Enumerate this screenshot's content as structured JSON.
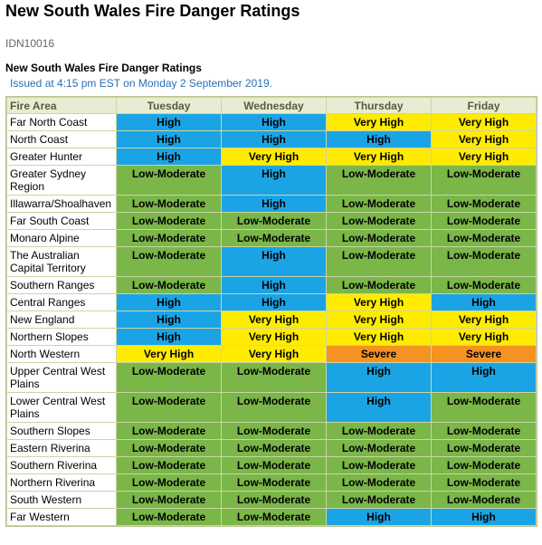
{
  "page": {
    "title": "New South Wales Fire Danger Ratings",
    "product_id": "IDN10016",
    "subtitle": "New South Wales Fire Danger Ratings",
    "issued": "Issued at 4:15 pm EST on Monday 2 September 2019."
  },
  "table": {
    "headers": [
      "Fire Area",
      "Tuesday",
      "Wednesday",
      "Thursday",
      "Friday"
    ],
    "rows": [
      {
        "area": "Far North Coast",
        "ratings": [
          "High",
          "High",
          "Very High",
          "Very High"
        ]
      },
      {
        "area": "North Coast",
        "ratings": [
          "High",
          "High",
          "High",
          "Very High"
        ]
      },
      {
        "area": "Greater Hunter",
        "ratings": [
          "High",
          "Very High",
          "Very High",
          "Very High"
        ]
      },
      {
        "area": "Greater Sydney Region",
        "ratings": [
          "Low-Moderate",
          "High",
          "Low-Moderate",
          "Low-Moderate"
        ]
      },
      {
        "area": "Illawarra/Shoalhaven",
        "ratings": [
          "Low-Moderate",
          "High",
          "Low-Moderate",
          "Low-Moderate"
        ]
      },
      {
        "area": "Far South Coast",
        "ratings": [
          "Low-Moderate",
          "Low-Moderate",
          "Low-Moderate",
          "Low-Moderate"
        ]
      },
      {
        "area": "Monaro Alpine",
        "ratings": [
          "Low-Moderate",
          "Low-Moderate",
          "Low-Moderate",
          "Low-Moderate"
        ]
      },
      {
        "area": "The Australian Capital Territory",
        "ratings": [
          "Low-Moderate",
          "High",
          "Low-Moderate",
          "Low-Moderate"
        ]
      },
      {
        "area": "Southern Ranges",
        "ratings": [
          "Low-Moderate",
          "High",
          "Low-Moderate",
          "Low-Moderate"
        ]
      },
      {
        "area": "Central Ranges",
        "ratings": [
          "High",
          "High",
          "Very High",
          "High"
        ]
      },
      {
        "area": "New England",
        "ratings": [
          "High",
          "Very High",
          "Very High",
          "Very High"
        ]
      },
      {
        "area": "Northern Slopes",
        "ratings": [
          "High",
          "Very High",
          "Very High",
          "Very High"
        ]
      },
      {
        "area": "North Western",
        "ratings": [
          "Very High",
          "Very High",
          "Severe",
          "Severe"
        ]
      },
      {
        "area": "Upper Central West Plains",
        "ratings": [
          "Low-Moderate",
          "Low-Moderate",
          "High",
          "High"
        ]
      },
      {
        "area": "Lower Central West Plains",
        "ratings": [
          "Low-Moderate",
          "Low-Moderate",
          "High",
          "Low-Moderate"
        ]
      },
      {
        "area": "Southern Slopes",
        "ratings": [
          "Low-Moderate",
          "Low-Moderate",
          "Low-Moderate",
          "Low-Moderate"
        ]
      },
      {
        "area": "Eastern Riverina",
        "ratings": [
          "Low-Moderate",
          "Low-Moderate",
          "Low-Moderate",
          "Low-Moderate"
        ]
      },
      {
        "area": "Southern Riverina",
        "ratings": [
          "Low-Moderate",
          "Low-Moderate",
          "Low-Moderate",
          "Low-Moderate"
        ]
      },
      {
        "area": "Northern Riverina",
        "ratings": [
          "Low-Moderate",
          "Low-Moderate",
          "Low-Moderate",
          "Low-Moderate"
        ]
      },
      {
        "area": "South Western",
        "ratings": [
          "Low-Moderate",
          "Low-Moderate",
          "Low-Moderate",
          "Low-Moderate"
        ]
      },
      {
        "area": "Far Western",
        "ratings": [
          "Low-Moderate",
          "Low-Moderate",
          "High",
          "High"
        ]
      }
    ]
  },
  "colors": {
    "High": "#1ba4e5",
    "Very High": "#ffeb00",
    "Low-Moderate": "#7ab648",
    "Severe": "#f49222",
    "header_bg": "#e8ecd2",
    "issued_text": "#2a6fb5"
  }
}
